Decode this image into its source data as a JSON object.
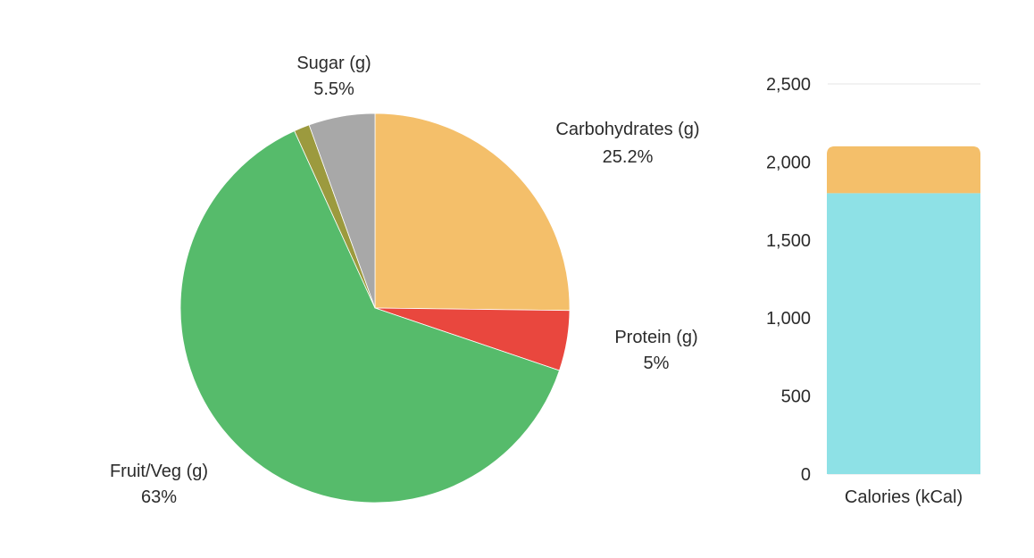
{
  "colors": {
    "carbohydrates": "#F4BF6A",
    "protein": "#E9473E",
    "fruit_veg": "#56BB6B",
    "other": "#9C9A3E",
    "sugar": "#A8A8A8",
    "calories_base": "#8EE1E6",
    "calories_top": "#F4BF6A",
    "grid": "#E6E6E6"
  },
  "chart_data": [
    {
      "type": "pie",
      "slices": [
        {
          "name": "Carbohydrates (g)",
          "label": "25.2%",
          "value": 25.2,
          "color_key": "carbohydrates"
        },
        {
          "name": "Protein (g)",
          "label": "5%",
          "value": 5.0,
          "color_key": "protein"
        },
        {
          "name": "Fruit/Veg (g)",
          "label": "63%",
          "value": 63.0,
          "color_key": "fruit_veg"
        },
        {
          "name": "",
          "label": "",
          "value": 1.3,
          "color_key": "other"
        },
        {
          "name": "Sugar (g)",
          "label": "5.5%",
          "value": 5.5,
          "color_key": "sugar"
        }
      ]
    },
    {
      "type": "bar",
      "stacked": true,
      "categories": [
        "Calories (kCal)"
      ],
      "series": [
        {
          "values": [
            1800
          ],
          "color_key": "calories_base"
        },
        {
          "values": [
            300
          ],
          "color_key": "calories_top"
        }
      ],
      "ylim": [
        0,
        2500
      ],
      "yticks": [
        0,
        500,
        1000,
        1500,
        2000,
        2500
      ],
      "ytick_labels": [
        "0",
        "500",
        "1,000",
        "1,500",
        "2,000",
        "2,500"
      ],
      "grid": true
    }
  ]
}
